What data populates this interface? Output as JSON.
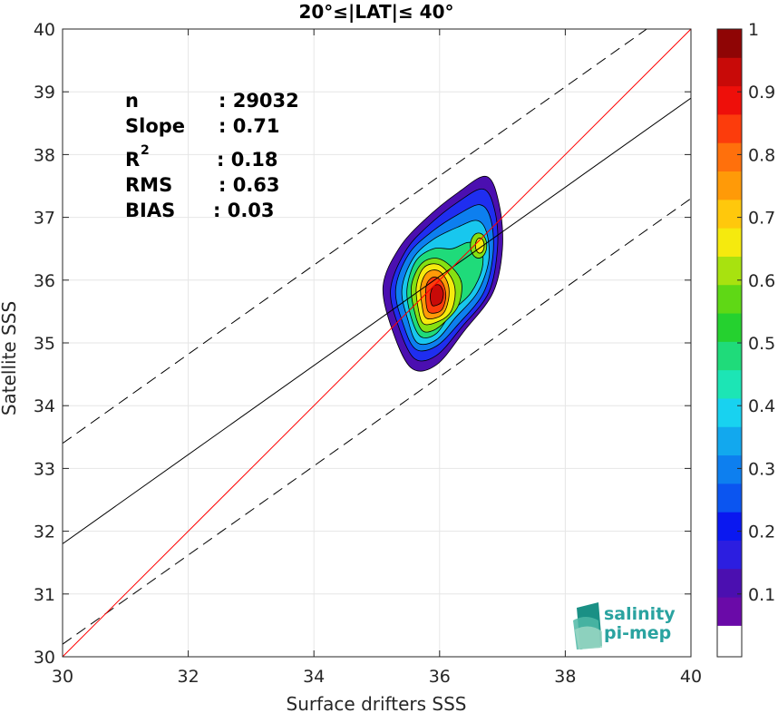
{
  "chart_data": {
    "type": "heatmap",
    "title": "20°≤|LAT|≤ 40°",
    "xlabel": "Surface drifters SSS",
    "ylabel": "Satellite SSS",
    "xlim": [
      30,
      40
    ],
    "ylim": [
      30,
      40
    ],
    "xticks": [
      30,
      32,
      34,
      36,
      38,
      40
    ],
    "yticks": [
      30,
      31,
      32,
      33,
      34,
      35,
      36,
      37,
      38,
      39,
      40
    ],
    "grid": true,
    "stats": {
      "n_label": "n",
      "n_value": ": 29032",
      "slope_label": "Slope",
      "slope_value": ": 0.71",
      "r2_label": "R",
      "r2_sup": "2",
      "r2_value": ": 0.18",
      "rms_label": "RMS",
      "rms_value": ": 0.63",
      "bias_label": "BIAS",
      "bias_value": ": 0.03"
    },
    "reference_lines": {
      "one_to_one": {
        "slope": 1,
        "intercept": 0,
        "color": "#ff0000"
      },
      "regression": {
        "slope": 0.71,
        "intercept": 10.5,
        "color": "#000000"
      },
      "regression_upper": {
        "slope": 0.71,
        "intercept": 12.1,
        "color": "#000000",
        "dash": true
      },
      "regression_lower": {
        "slope": 0.71,
        "intercept": 8.9,
        "color": "#000000",
        "dash": true
      }
    },
    "density_center": {
      "x": 36.0,
      "y": 35.9
    },
    "density_levels": [
      {
        "level": 0.05,
        "color": "#4b0fb0",
        "points": [
          [
            35.55,
            34.6
          ],
          [
            35.25,
            35.2
          ],
          [
            35.1,
            35.9
          ],
          [
            35.35,
            36.5
          ],
          [
            35.75,
            36.95
          ],
          [
            36.3,
            37.4
          ],
          [
            36.75,
            37.65
          ],
          [
            36.95,
            37.2
          ],
          [
            37.0,
            36.5
          ],
          [
            36.85,
            35.8
          ],
          [
            36.4,
            35.2
          ],
          [
            35.95,
            34.65
          ]
        ]
      },
      {
        "level": 0.15,
        "color": "#1f2ef0",
        "points": [
          [
            35.6,
            34.75
          ],
          [
            35.35,
            35.25
          ],
          [
            35.22,
            35.85
          ],
          [
            35.45,
            36.45
          ],
          [
            35.8,
            36.85
          ],
          [
            36.3,
            37.25
          ],
          [
            36.7,
            37.45
          ],
          [
            36.88,
            37.1
          ],
          [
            36.92,
            36.5
          ],
          [
            36.78,
            35.8
          ],
          [
            36.35,
            35.25
          ],
          [
            35.95,
            34.8
          ]
        ]
      },
      {
        "level": 0.25,
        "color": "#0d7fef",
        "points": [
          [
            35.62,
            34.9
          ],
          [
            35.42,
            35.3
          ],
          [
            35.3,
            35.85
          ],
          [
            35.5,
            36.4
          ],
          [
            35.85,
            36.75
          ],
          [
            36.3,
            37.05
          ],
          [
            36.65,
            37.2
          ],
          [
            36.82,
            36.95
          ],
          [
            36.85,
            36.4
          ],
          [
            36.7,
            35.8
          ],
          [
            36.3,
            35.3
          ],
          [
            35.95,
            34.95
          ]
        ]
      },
      {
        "level": 0.35,
        "color": "#18c7ee",
        "points": [
          [
            35.65,
            35.0
          ],
          [
            35.5,
            35.35
          ],
          [
            35.4,
            35.85
          ],
          [
            35.58,
            36.35
          ],
          [
            35.9,
            36.65
          ],
          [
            36.3,
            36.85
          ],
          [
            36.6,
            36.95
          ],
          [
            36.75,
            36.75
          ],
          [
            36.78,
            36.3
          ],
          [
            36.6,
            35.8
          ],
          [
            36.25,
            35.4
          ],
          [
            35.95,
            35.05
          ]
        ]
      },
      {
        "level": 0.45,
        "color": "#1fdb7a",
        "points": [
          [
            35.7,
            35.1
          ],
          [
            35.55,
            35.4
          ],
          [
            35.48,
            35.85
          ],
          [
            35.62,
            36.3
          ],
          [
            35.9,
            36.5
          ],
          [
            36.2,
            36.5
          ],
          [
            36.45,
            36.6
          ],
          [
            36.65,
            36.55
          ],
          [
            36.68,
            36.2
          ],
          [
            36.5,
            35.8
          ],
          [
            36.2,
            35.5
          ],
          [
            35.95,
            35.15
          ]
        ]
      },
      {
        "level": 0.55,
        "color": "#86e012",
        "points": [
          [
            35.72,
            35.2
          ],
          [
            35.6,
            35.5
          ],
          [
            35.55,
            35.9
          ],
          [
            35.7,
            36.25
          ],
          [
            35.95,
            36.35
          ],
          [
            36.2,
            36.2
          ],
          [
            36.35,
            35.95
          ],
          [
            36.3,
            35.6
          ],
          [
            36.1,
            35.35
          ],
          [
            35.9,
            35.2
          ]
        ]
      },
      {
        "level": 0.65,
        "color": "#f5ea0e",
        "points": [
          [
            35.75,
            35.3
          ],
          [
            35.66,
            35.55
          ],
          [
            35.63,
            35.9
          ],
          [
            35.75,
            36.2
          ],
          [
            35.98,
            36.25
          ],
          [
            36.18,
            36.05
          ],
          [
            36.25,
            35.8
          ],
          [
            36.18,
            35.5
          ],
          [
            36.0,
            35.35
          ]
        ]
      },
      {
        "level": 0.75,
        "color": "#ff9a08",
        "points": [
          [
            35.78,
            35.4
          ],
          [
            35.72,
            35.6
          ],
          [
            35.7,
            35.9
          ],
          [
            35.8,
            36.12
          ],
          [
            35.98,
            36.15
          ],
          [
            36.12,
            35.98
          ],
          [
            36.15,
            35.75
          ],
          [
            36.08,
            35.5
          ],
          [
            35.95,
            35.4
          ]
        ]
      },
      {
        "level": 0.85,
        "color": "#fc3c0c",
        "points": [
          [
            35.82,
            35.5
          ],
          [
            35.78,
            35.7
          ],
          [
            35.8,
            35.95
          ],
          [
            35.92,
            36.05
          ],
          [
            36.05,
            35.95
          ],
          [
            36.1,
            35.75
          ],
          [
            36.05,
            35.55
          ],
          [
            35.95,
            35.48
          ]
        ]
      },
      {
        "level": 0.95,
        "color": "#c80a08",
        "points": [
          [
            35.88,
            35.6
          ],
          [
            35.85,
            35.75
          ],
          [
            35.9,
            35.9
          ],
          [
            36.0,
            35.92
          ],
          [
            36.06,
            35.8
          ],
          [
            36.03,
            35.65
          ],
          [
            35.95,
            35.6
          ]
        ]
      }
    ],
    "secondary_peak": [
      {
        "color": "#86e012",
        "cx": 36.62,
        "cy": 36.55,
        "rx": 0.13,
        "ry": 0.2
      },
      {
        "color": "#f5ea0e",
        "cx": 36.64,
        "cy": 36.55,
        "rx": 0.07,
        "ry": 0.12
      }
    ],
    "colorbar": {
      "min": 0.05,
      "max": 1.0,
      "ticks": [
        0.1,
        0.2,
        0.3,
        0.4,
        0.5,
        0.6,
        0.7,
        0.8,
        0.9,
        1
      ],
      "tick_labels": [
        "0.1",
        "0.2",
        "0.3",
        "0.4",
        "0.5",
        "0.6",
        "0.7",
        "0.8",
        "0.9",
        "1"
      ],
      "colors": [
        "#6a0aa8",
        "#4b0fb0",
        "#2c1ee0",
        "#0a18f0",
        "#0b55f0",
        "#0d7fef",
        "#12a8ee",
        "#18d2f0",
        "#1ce5b5",
        "#1fdb7a",
        "#25d12f",
        "#5fd815",
        "#a8e20f",
        "#f5ea0e",
        "#ffc80c",
        "#ff9a08",
        "#ff700c",
        "#fc3c0c",
        "#ee0f0a",
        "#c80a08",
        "#8f0505"
      ]
    },
    "logo": {
      "line1": "salinity",
      "line2": "pi-mep"
    }
  }
}
